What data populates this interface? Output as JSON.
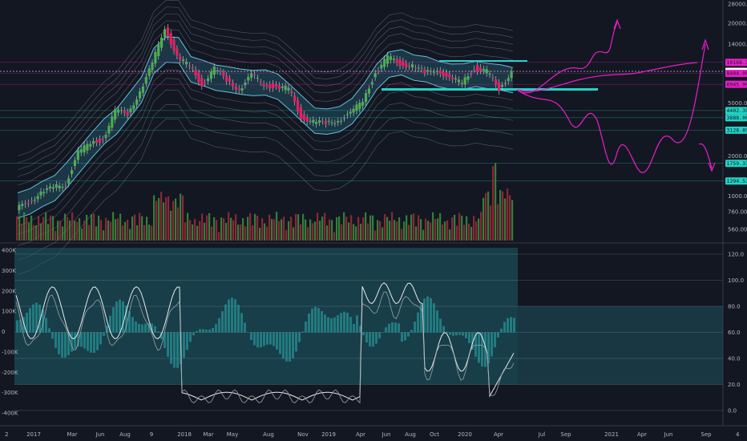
{
  "chart_data": [
    {
      "type": "candlestick",
      "price_axis": {
        "scale": "log",
        "tick_labels": [
          "28000.00",
          "20000.00",
          "14000.00",
          "5000.00",
          "2000.00",
          "1000.00",
          "760.00",
          "560.00"
        ],
        "tick_values": [
          28000,
          20000,
          14000,
          5000,
          2000,
          1000,
          760,
          560
        ]
      },
      "price_badges": [
        {
          "label": "10168.36",
          "value": 10168.36,
          "color": "#e91ec8"
        },
        {
          "label": "8696.65",
          "value": 8696.65,
          "color": "#ffffff"
        },
        {
          "label": "8404.00",
          "value": 8404.0,
          "color": "#e91ec8"
        },
        {
          "label": "6945.99",
          "value": 6945.99,
          "color": "#e91ec8"
        },
        {
          "label": "4402.39",
          "value": 4402.39,
          "color": "#22d3c5"
        },
        {
          "label": "3888.00",
          "value": 3888.0,
          "color": "#22d3c5"
        },
        {
          "label": "3128.89",
          "value": 3128.89,
          "color": "#22d3c5"
        },
        {
          "label": "1759.33",
          "value": 1759.33,
          "color": "#22d3c5"
        },
        {
          "label": "1294.51",
          "value": 1294.51,
          "color": "#22d3c5"
        }
      ],
      "close_path_weekly": [
        {
          "t": "2016-12",
          "close": 780
        },
        {
          "t": "2017-01",
          "close": 920
        },
        {
          "t": "2017-02",
          "close": 1050
        },
        {
          "t": "2017-03",
          "close": 1150
        },
        {
          "t": "2017-04",
          "close": 1250
        },
        {
          "t": "2017-05",
          "close": 2100
        },
        {
          "t": "2017-06",
          "close": 2500
        },
        {
          "t": "2017-07",
          "close": 2700
        },
        {
          "t": "2017-08",
          "close": 4300
        },
        {
          "t": "2017-09",
          "close": 4200
        },
        {
          "t": "2017-10",
          "close": 6100
        },
        {
          "t": "2017-11",
          "close": 9800
        },
        {
          "t": "2017-12",
          "close": 19000
        },
        {
          "t": "2018-01",
          "close": 11000
        },
        {
          "t": "2018-02",
          "close": 9500
        },
        {
          "t": "2018-03",
          "close": 7000
        },
        {
          "t": "2018-04",
          "close": 9000
        },
        {
          "t": "2018-05",
          "close": 7500
        },
        {
          "t": "2018-06",
          "close": 6400
        },
        {
          "t": "2018-07",
          "close": 8000
        },
        {
          "t": "2018-08",
          "close": 7000
        },
        {
          "t": "2018-09",
          "close": 6600
        },
        {
          "t": "2018-10",
          "close": 6400
        },
        {
          "t": "2018-11",
          "close": 4000
        },
        {
          "t": "2018-12",
          "close": 3600
        },
        {
          "t": "2019-01",
          "close": 3500
        },
        {
          "t": "2019-02",
          "close": 3800
        },
        {
          "t": "2019-03",
          "close": 4100
        },
        {
          "t": "2019-04",
          "close": 5300
        },
        {
          "t": "2019-05",
          "close": 8500
        },
        {
          "t": "2019-06",
          "close": 11000
        },
        {
          "t": "2019-07",
          "close": 10000
        },
        {
          "t": "2019-08",
          "close": 9600
        },
        {
          "t": "2019-09",
          "close": 8300
        },
        {
          "t": "2019-10",
          "close": 9200
        },
        {
          "t": "2019-11",
          "close": 7500
        },
        {
          "t": "2019-12",
          "close": 7200
        },
        {
          "t": "2020-01",
          "close": 9300
        },
        {
          "t": "2020-02",
          "close": 8600
        },
        {
          "t": "2020-03",
          "close": 6400
        },
        {
          "t": "2020-04",
          "close": 8700
        }
      ]
    },
    {
      "type": "bar",
      "name": "volume",
      "description_levels": [
        1,
        0.9,
        0.8
      ]
    },
    {
      "type": "line",
      "left_axis": {
        "tick_labels": [
          "400K",
          "300K",
          "200K",
          "100K",
          "0",
          "-100K",
          "-200K",
          "-300K",
          "-400K"
        ]
      },
      "right_axis": {
        "tick_labels": [
          "120.0",
          "100.0",
          "80.0",
          "60.0",
          "40.0",
          "20.0",
          "0.0"
        ],
        "tick_values": [
          120,
          100,
          80,
          60,
          40,
          20,
          0
        ]
      }
    }
  ],
  "x_axis": {
    "labels": [
      "2017",
      "Mar",
      "Jun",
      "Aug",
      "9",
      "2018",
      "Mar",
      "May",
      "Aug",
      "Nov",
      "2019",
      "Apr",
      "Jun",
      "Aug",
      "Oct",
      "2020",
      "Apr",
      "Jul",
      "Sep",
      "2021",
      "Apr",
      "Jun",
      "Sep"
    ]
  },
  "colors": {
    "background": "#131722",
    "up": "#26a69a",
    "up_bright": "#4caf50",
    "down": "#e91e63",
    "band": "#3fa7c4",
    "cyan": "#22d3c5",
    "magenta": "#e91ec8"
  },
  "corner_labels": {
    "bottom_left": "2",
    "bottom_right": "4"
  }
}
